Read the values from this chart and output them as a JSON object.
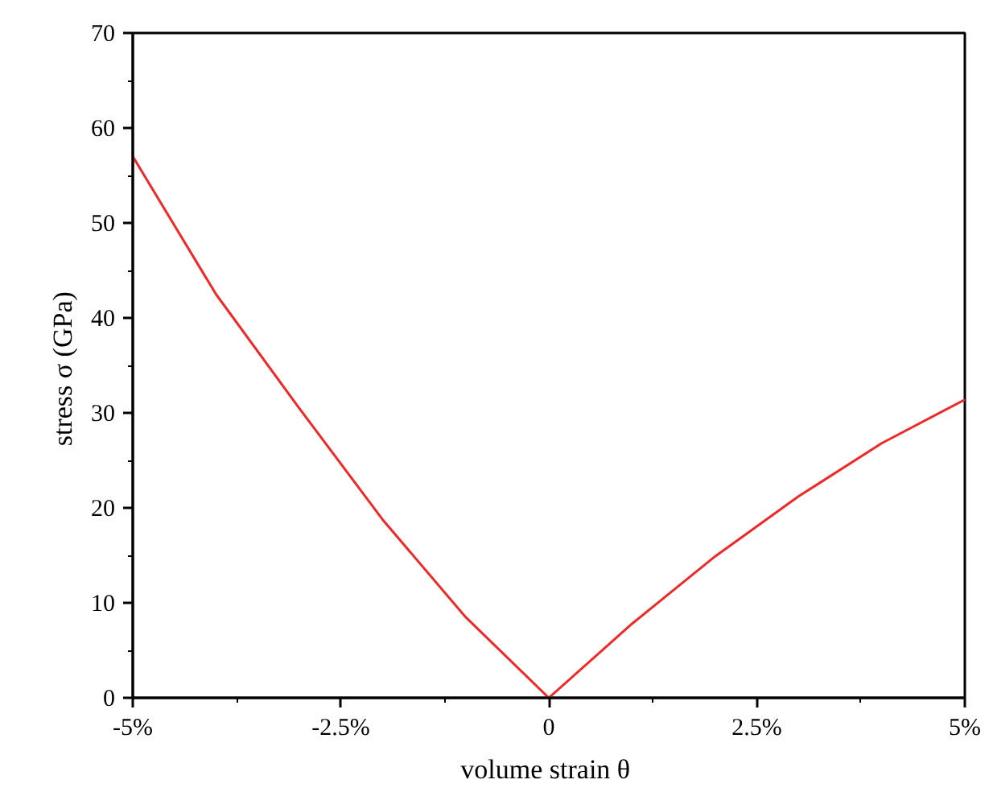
{
  "chart_data": {
    "type": "line",
    "xlabel": "volume strain  θ",
    "ylabel": "stress σ  (GPa)",
    "x": [
      -5,
      -4,
      -3,
      -2,
      -1,
      0,
      1,
      2,
      3,
      4,
      5
    ],
    "series": [
      {
        "color": "#f02828",
        "values": [
          57,
          42.5,
          30.5,
          18.8,
          8.5,
          0,
          7.8,
          14.9,
          21.2,
          26.8,
          31.4
        ]
      }
    ],
    "xlim": [
      -5,
      5
    ],
    "ylim": [
      0,
      70
    ],
    "xticks": [
      {
        "value": -5,
        "label": "-5%"
      },
      {
        "value": -2.5,
        "label": "-2.5%"
      },
      0,
      {
        "value": 2.5,
        "label": "2.5%"
      },
      {
        "value": 5,
        "label": "5%"
      }
    ],
    "yticks": [
      0,
      10,
      20,
      30,
      40,
      50,
      60,
      70
    ],
    "grid": false,
    "marker": "none",
    "line_style": "solid"
  }
}
